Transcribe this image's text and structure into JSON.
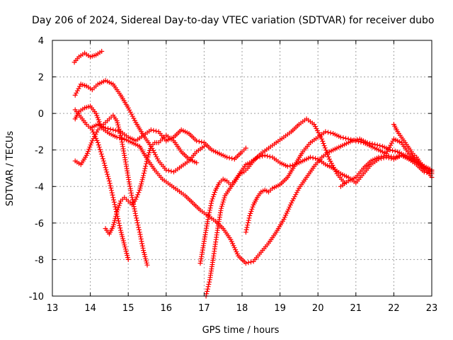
{
  "chart_data": {
    "type": "scatter",
    "title": "Day 206 of 2024, Sidereal Day-to-day VTEC variation (SDTVAR) for receiver dubo",
    "xlabel": "GPS time / hours",
    "ylabel": "SDTVAR / TECUs",
    "xlim": [
      13,
      23
    ],
    "ylim": [
      -10,
      4
    ],
    "xticks": [
      13,
      14,
      15,
      16,
      17,
      18,
      19,
      20,
      21,
      22,
      23
    ],
    "yticks": [
      -10,
      -8,
      -6,
      -4,
      -2,
      0,
      2,
      4
    ],
    "grid": true,
    "marker": "+",
    "color": "#ff0000",
    "series": [
      {
        "x": [
          13.58,
          13.7,
          13.85,
          14.0,
          14.15,
          14.3
        ],
        "y": [
          2.8,
          3.1,
          3.3,
          3.1,
          3.2,
          3.4
        ]
      },
      {
        "x": [
          13.6,
          13.75,
          13.9,
          14.05,
          14.2,
          14.4,
          14.6,
          14.8,
          15.0,
          15.2,
          15.4,
          15.6,
          15.8,
          16.0,
          16.2,
          16.4,
          16.6,
          16.8,
          17.0
        ],
        "y": [
          1.0,
          1.6,
          1.5,
          1.3,
          1.6,
          1.8,
          1.6,
          1.0,
          0.3,
          -0.5,
          -1.2,
          -1.8,
          -2.6,
          -3.1,
          -3.2,
          -2.9,
          -2.6,
          -2.1,
          -1.8
        ]
      },
      {
        "x": [
          13.6,
          13.7,
          13.85,
          14.0,
          14.15,
          14.3,
          14.5,
          14.7,
          14.9,
          15.1,
          15.3,
          15.5,
          15.7,
          15.9,
          16.1,
          16.3,
          16.5,
          16.7,
          16.9,
          17.1,
          17.3,
          17.5,
          17.7,
          17.9,
          18.1,
          18.3,
          18.5,
          18.7,
          18.9,
          19.1,
          19.3,
          19.5,
          19.7,
          19.9,
          20.1,
          20.3,
          20.5,
          20.7,
          20.9,
          21.1,
          21.3,
          21.5,
          21.7,
          21.9,
          22.1,
          22.3,
          22.5,
          22.7,
          22.9,
          23.0
        ],
        "y": [
          -0.3,
          0.1,
          0.3,
          0.4,
          0.0,
          -0.8,
          -1.1,
          -1.3,
          -1.4,
          -1.6,
          -1.8,
          -2.5,
          -3.1,
          -3.6,
          -3.9,
          -4.2,
          -4.5,
          -4.9,
          -5.3,
          -5.6,
          -5.9,
          -6.3,
          -6.9,
          -7.8,
          -8.2,
          -8.1,
          -7.6,
          -7.1,
          -6.5,
          -5.8,
          -4.9,
          -4.1,
          -3.5,
          -2.9,
          -2.4,
          -2.1,
          -1.9,
          -1.7,
          -1.5,
          -1.4,
          -1.6,
          -1.7,
          -1.8,
          -2.0,
          -2.1,
          -2.3,
          -2.5,
          -2.8,
          -3.2,
          -3.5
        ]
      },
      {
        "x": [
          13.6,
          13.75,
          13.9,
          14.05,
          14.2,
          14.35,
          14.5,
          14.6,
          14.7,
          14.8,
          14.9,
          15.0
        ],
        "y": [
          0.2,
          -0.2,
          -0.6,
          -0.9,
          -1.6,
          -2.6,
          -3.7,
          -4.6,
          -5.5,
          -6.4,
          -7.2,
          -8.0
        ]
      },
      {
        "x": [
          13.6,
          13.75,
          13.9,
          14.05,
          14.2,
          14.35,
          14.5,
          14.6,
          14.7,
          14.8,
          14.9,
          15.0,
          15.1,
          15.2,
          15.3,
          15.4,
          15.5
        ],
        "y": [
          -2.6,
          -2.8,
          -2.3,
          -1.5,
          -0.9,
          -0.6,
          -0.3,
          -0.1,
          -0.4,
          -1.2,
          -2.3,
          -3.5,
          -4.6,
          -5.6,
          -6.5,
          -7.5,
          -8.3
        ]
      },
      {
        "x": [
          14.4,
          14.5,
          14.6,
          14.7,
          14.8,
          14.9,
          15.0,
          15.1,
          15.2,
          15.3,
          15.4,
          15.5,
          15.6,
          15.7,
          15.8,
          15.9,
          16.0,
          16.2,
          16.4,
          16.6,
          16.8
        ],
        "y": [
          -6.3,
          -6.6,
          -6.2,
          -5.4,
          -4.8,
          -4.6,
          -4.8,
          -5.0,
          -4.7,
          -4.2,
          -3.4,
          -2.5,
          -1.8,
          -1.6,
          -1.6,
          -1.4,
          -1.2,
          -1.5,
          -2.1,
          -2.5,
          -2.7
        ]
      },
      {
        "x": [
          14.0,
          14.2,
          14.4,
          14.6,
          14.8,
          15.0,
          15.2,
          15.4,
          15.6,
          15.8,
          16.0,
          16.2,
          16.4,
          16.6,
          16.8,
          17.0,
          17.2,
          17.4,
          17.6,
          17.8,
          18.0,
          18.1
        ],
        "y": [
          -0.8,
          -0.6,
          -0.8,
          -0.9,
          -1.0,
          -1.3,
          -1.5,
          -1.2,
          -0.9,
          -1.0,
          -1.5,
          -1.3,
          -0.9,
          -1.1,
          -1.5,
          -1.6,
          -2.0,
          -2.2,
          -2.4,
          -2.5,
          -2.1,
          -1.9
        ]
      },
      {
        "x": [
          16.9,
          17.0,
          17.1,
          17.2,
          17.3,
          17.4,
          17.5,
          17.6,
          17.7,
          17.8,
          17.9,
          18.0,
          18.1,
          18.2,
          18.4,
          18.6,
          18.8,
          19.0,
          19.2,
          19.4,
          19.6,
          19.8,
          20.0,
          20.2,
          20.4,
          20.6,
          20.8,
          21.0,
          21.2,
          21.4,
          21.6,
          21.8,
          22.0,
          22.2,
          22.4,
          22.6,
          22.8,
          23.0
        ],
        "y": [
          -8.2,
          -7.0,
          -5.8,
          -4.8,
          -4.2,
          -3.8,
          -3.6,
          -3.7,
          -3.9,
          -3.7,
          -3.4,
          -3.1,
          -2.8,
          -2.7,
          -2.4,
          -2.3,
          -2.4,
          -2.7,
          -2.9,
          -2.8,
          -2.6,
          -2.4,
          -2.5,
          -2.8,
          -3.0,
          -3.3,
          -3.5,
          -3.8,
          -3.3,
          -2.8,
          -2.5,
          -2.4,
          -2.5,
          -2.3,
          -2.5,
          -2.7,
          -2.9,
          -3.1
        ]
      },
      {
        "x": [
          17.05,
          17.15,
          17.25,
          17.35,
          17.45,
          17.55,
          17.65,
          17.75,
          17.85,
          17.95,
          18.05,
          18.15,
          18.3,
          18.5,
          18.7,
          18.9,
          19.1,
          19.3,
          19.5,
          19.7,
          19.9,
          20.1,
          20.3,
          20.5,
          20.7
        ],
        "y": [
          -10.0,
          -9.1,
          -7.8,
          -6.4,
          -5.2,
          -4.5,
          -4.2,
          -3.9,
          -3.6,
          -3.3,
          -3.2,
          -3.0,
          -2.6,
          -2.2,
          -1.9,
          -1.6,
          -1.3,
          -1.0,
          -0.6,
          -0.3,
          -0.6,
          -1.4,
          -2.5,
          -3.3,
          -3.8
        ]
      },
      {
        "x": [
          18.1,
          18.2,
          18.3,
          18.4,
          18.5,
          18.6,
          18.7,
          18.8,
          18.9,
          19.0,
          19.2,
          19.4,
          19.6,
          19.8,
          20.0,
          20.2,
          20.4,
          20.6,
          20.8,
          21.0,
          21.2,
          21.4,
          21.6,
          21.8,
          22.0,
          22.2,
          22.4,
          22.6,
          22.8,
          23.0
        ],
        "y": [
          -6.5,
          -5.6,
          -5.0,
          -4.6,
          -4.3,
          -4.2,
          -4.3,
          -4.1,
          -4.0,
          -3.9,
          -3.5,
          -2.8,
          -2.1,
          -1.6,
          -1.3,
          -1.0,
          -1.1,
          -1.3,
          -1.4,
          -1.5,
          -1.6,
          -1.8,
          -2.0,
          -2.2,
          -1.4,
          -1.6,
          -2.2,
          -2.6,
          -2.9,
          -3.1
        ]
      },
      {
        "x": [
          20.6,
          20.8,
          21.0,
          21.2,
          21.4,
          21.6,
          21.8,
          22.0,
          22.2,
          22.4,
          22.6,
          22.8,
          23.0
        ],
        "y": [
          -4.0,
          -3.7,
          -3.5,
          -3.0,
          -2.6,
          -2.4,
          -2.3,
          -2.4,
          -2.3,
          -2.5,
          -2.8,
          -3.2,
          -3.3
        ]
      },
      {
        "x": [
          22.0,
          22.1,
          22.2,
          22.3,
          22.4,
          22.5,
          22.6,
          22.7,
          22.8,
          22.9,
          23.0
        ],
        "y": [
          -0.6,
          -1.0,
          -1.3,
          -1.6,
          -1.9,
          -2.2,
          -2.4,
          -2.7,
          -2.9,
          -3.1,
          -3.2
        ]
      }
    ]
  }
}
